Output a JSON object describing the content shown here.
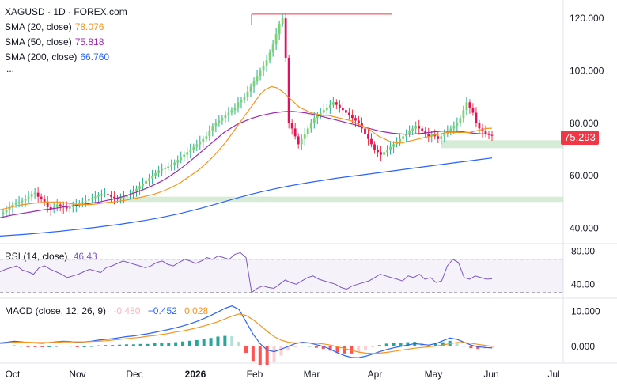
{
  "header": {
    "symbol_line": "XAGUSD · 1D · FOREX.com",
    "more": "...",
    "indicators": [
      {
        "label": "SMA (20, close)",
        "value": "78.076",
        "color": "#f7941d"
      },
      {
        "label": "SMA (50, close)",
        "value": "75.818",
        "color": "#9c27b0"
      },
      {
        "label": "SMA (200, close)",
        "value": "66.760",
        "color": "#2962ff"
      }
    ]
  },
  "price_tag": "75.293",
  "rsi_legend": {
    "label": "RSI (14, close)",
    "value": "46.43"
  },
  "macd_legend": {
    "label": "MACD (close, 12, 26, 9)",
    "hist": "-0.480",
    "macd": "−0.452",
    "signal": "0.028"
  },
  "chart_data": {
    "type": "candlestick",
    "x_ticks": [
      "Oct",
      "Nov",
      "Dec",
      "2026",
      "Feb",
      "Mar",
      "Apr",
      "May",
      "Jun",
      "Jul"
    ],
    "price_axis": {
      "ticks": [
        "120.000",
        "100.000",
        "80.000",
        "60.000",
        "40.000"
      ],
      "ylim": [
        35,
        127
      ]
    },
    "rsi_axis": {
      "ticks": [
        "80.00",
        "40.00"
      ],
      "band": [
        30,
        70
      ]
    },
    "macd_axis": {
      "ticks": [
        "10.000",
        "0.000"
      ]
    },
    "zones": [
      [
        70.5,
        73.5
      ],
      [
        50,
        52
      ]
    ],
    "peak_marker": 121.6,
    "close": [
      46,
      47,
      48,
      49,
      49.5,
      50,
      50.5,
      51,
      52,
      53,
      53.5,
      52,
      51,
      50,
      48,
      47,
      48,
      49,
      48.5,
      48,
      47.5,
      48,
      48.5,
      49,
      49.5,
      50,
      50.5,
      51,
      51.5,
      52,
      52.5,
      53,
      53,
      52.5,
      52,
      51.5,
      51,
      51.5,
      52,
      52.5,
      53,
      54,
      55,
      56,
      57,
      58,
      59,
      60,
      61,
      62,
      62.5,
      63,
      63.5,
      64,
      65,
      66,
      67,
      68,
      69,
      70,
      71,
      72,
      73,
      74,
      75,
      77,
      79,
      80,
      81,
      82,
      83,
      84,
      85,
      86,
      88,
      89,
      90,
      92,
      94,
      96,
      98,
      100,
      102,
      104,
      107,
      110,
      114,
      118,
      120,
      105,
      80,
      78,
      75,
      72,
      74,
      76,
      78,
      80,
      82,
      83,
      84,
      85,
      86,
      87,
      88,
      87,
      86,
      85,
      84,
      83,
      82,
      81,
      80,
      78,
      76,
      74,
      72,
      70,
      69,
      68,
      69,
      70,
      71,
      72,
      73,
      74,
      75,
      76,
      77,
      78,
      79,
      78,
      77,
      76,
      75,
      76,
      75,
      74,
      75,
      76,
      77,
      78,
      79,
      80,
      82,
      85,
      88,
      86,
      84,
      80,
      78,
      77,
      76,
      75.5,
      75.3
    ],
    "sma20": [
      47,
      47.5,
      48,
      48.5,
      49,
      49.2,
      49.5,
      49.7,
      50,
      50,
      50,
      49.8,
      49.5,
      49.2,
      49,
      49,
      49,
      49.2,
      49.5,
      49.8,
      50,
      50.3,
      50.6,
      51,
      51.4,
      51.8,
      52.3,
      52.8,
      53.5,
      54.3,
      55.2,
      56.3,
      57.5,
      59,
      60.5,
      62,
      63.8,
      65.8,
      68,
      70.5,
      73,
      76,
      79,
      82,
      85,
      88,
      91,
      93,
      94,
      93.5,
      92,
      90,
      88,
      86,
      85,
      84,
      83.5,
      83,
      83,
      82.5,
      82,
      81.5,
      81,
      80,
      79,
      78,
      76.5,
      75,
      74,
      73,
      72.5,
      72.5,
      73,
      73.5,
      74,
      74.5,
      75,
      75.5,
      76,
      76.5,
      76.5,
      76.5,
      76.5,
      76.5,
      77,
      77.5,
      78,
      78.1
    ],
    "sma50": [
      44,
      44.5,
      45,
      45.4,
      45.8,
      46.2,
      46.6,
      47,
      47.3,
      47.6,
      48,
      48.3,
      48.6,
      49,
      49.3,
      49.7,
      50,
      50.5,
      51,
      51.6,
      52.2,
      53,
      53.8,
      54.7,
      55.7,
      56.8,
      58,
      59.4,
      61,
      62.7,
      64.5,
      66.5,
      68.5,
      70.5,
      72.5,
      74.5,
      76.5,
      78,
      79.5,
      80.5,
      81.5,
      82.3,
      83,
      83.5,
      84,
      84.3,
      84.5,
      84.5,
      84.3,
      84,
      83.5,
      83,
      82.4,
      81.8,
      81.2,
      80.6,
      80,
      79.4,
      78.8,
      78.2,
      77.6,
      77,
      76.6,
      76.2,
      76,
      75.8,
      75.8,
      76,
      76.2,
      76.5,
      76.8,
      77,
      77,
      77,
      76.8,
      76.5,
      76.2,
      76,
      75.9,
      75.8
    ],
    "sma200": [
      37,
      37.3,
      37.6,
      38,
      38.4,
      38.8,
      39.3,
      39.8,
      40.3,
      40.9,
      41.5,
      42.2,
      42.9,
      43.7,
      44.6,
      45.6,
      46.7,
      47.9,
      49.2,
      50.5,
      51.8,
      53,
      54.1,
      55.1,
      56,
      56.8,
      57.6,
      58.3,
      59,
      59.6,
      60.2,
      60.8,
      61.4,
      62,
      62.6,
      63.2,
      63.8,
      64.4,
      65,
      65.6,
      66.2,
      66.76
    ],
    "rsi": [
      55,
      58,
      60,
      62,
      57,
      55,
      52,
      60,
      62,
      58,
      55,
      52,
      48,
      50,
      52,
      55,
      58,
      56,
      54,
      60,
      62,
      65,
      68,
      66,
      64,
      62,
      60,
      62,
      66,
      68,
      64,
      62,
      66,
      70,
      68,
      65,
      68,
      72,
      70,
      74,
      72,
      70,
      76,
      78,
      72,
      30,
      35,
      38,
      36,
      35,
      40,
      45,
      42,
      40,
      44,
      48,
      50,
      46,
      44,
      42,
      40,
      36,
      34,
      38,
      40,
      42,
      44,
      48,
      52,
      50,
      48,
      46,
      44,
      50,
      48,
      52,
      46,
      48,
      42,
      44,
      62,
      70,
      66,
      48,
      46,
      50,
      48,
      46,
      46.4
    ],
    "macd": [
      1,
      1.2,
      1.5,
      1.3,
      1.1,
      1,
      0.9,
      1.1,
      1.3,
      1.5,
      1.4,
      1.2,
      1.3,
      1.5,
      1.8,
      2,
      2.2,
      2.5,
      2.8,
      3,
      3.3,
      3.6,
      4,
      4.4,
      4.8,
      5.3,
      5.8,
      6.4,
      7.1,
      7.9,
      8.8,
      9.8,
      10.8,
      11.5,
      10.5,
      7,
      3.5,
      0.8,
      -1,
      -1.5,
      -0.8,
      0,
      0.8,
      1.2,
      1,
      0.5,
      0,
      -0.8,
      -1.8,
      -2.6,
      -3.1,
      -3.2,
      -2.8,
      -2.2,
      -1.5,
      -0.9,
      -0.4,
      0,
      0.4,
      0.8,
      0.6,
      0.4,
      0.8,
      1.6,
      2.4,
      2,
      1.2,
      0.4,
      -0.1,
      -0.3,
      -0.45
    ],
    "signal": [
      0.8,
      1,
      1.2,
      1.2,
      1.2,
      1.1,
      1.1,
      1.1,
      1.2,
      1.3,
      1.3,
      1.3,
      1.3,
      1.4,
      1.5,
      1.6,
      1.8,
      2,
      2.2,
      2.4,
      2.6,
      2.9,
      3.1,
      3.4,
      3.7,
      4.1,
      4.4,
      4.8,
      5.3,
      5.8,
      6.4,
      7,
      7.8,
      8.6,
      9.2,
      8.8,
      7.6,
      6,
      4.3,
      2.8,
      1.8,
      1.2,
      1,
      1,
      1,
      0.9,
      0.7,
      0.4,
      -0.1,
      -0.6,
      -1.1,
      -1.6,
      -1.9,
      -2,
      -1.9,
      -1.7,
      -1.4,
      -1.1,
      -0.8,
      -0.5,
      -0.3,
      -0.1,
      0.1,
      0.4,
      0.8,
      1.1,
      1.1,
      0.9,
      0.6,
      0.3,
      0.03
    ]
  }
}
